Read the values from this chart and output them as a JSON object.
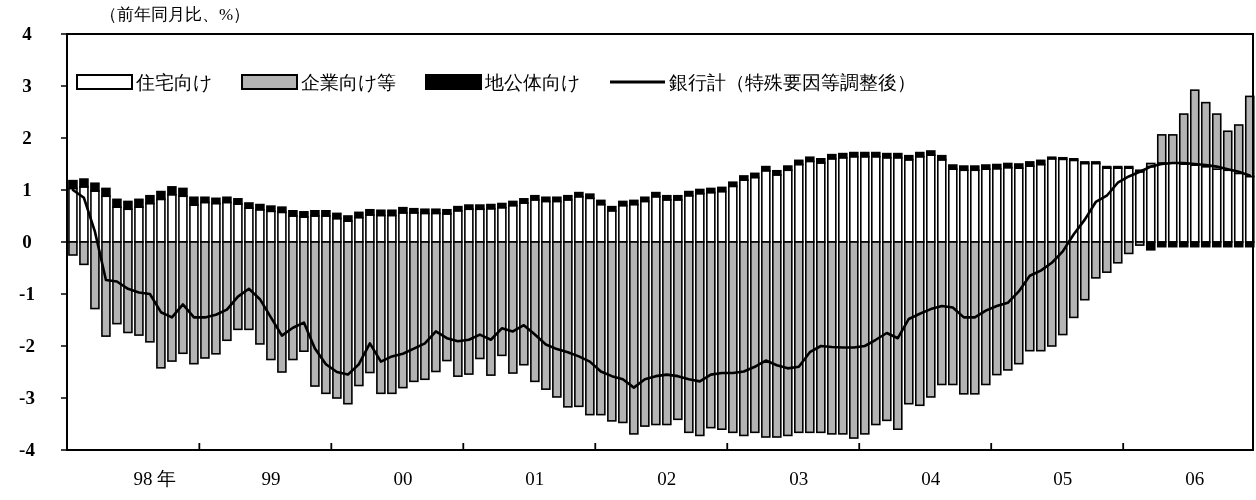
{
  "chart_data": {
    "type": "bar",
    "stacked": true,
    "title": "（前年同月比、%）",
    "x": [
      "1998-01",
      "1998-02",
      "1998-03",
      "1998-04",
      "1998-05",
      "1998-06",
      "1998-07",
      "1998-08",
      "1998-09",
      "1998-10",
      "1998-11",
      "1998-12",
      "1999-01",
      "1999-02",
      "1999-03",
      "1999-04",
      "1999-05",
      "1999-06",
      "1999-07",
      "1999-08",
      "1999-09",
      "1999-10",
      "1999-11",
      "1999-12",
      "2000-01",
      "2000-02",
      "2000-03",
      "2000-04",
      "2000-05",
      "2000-06",
      "2000-07",
      "2000-08",
      "2000-09",
      "2000-10",
      "2000-11",
      "2000-12",
      "2001-01",
      "2001-02",
      "2001-03",
      "2001-04",
      "2001-05",
      "2001-06",
      "2001-07",
      "2001-08",
      "2001-09",
      "2001-10",
      "2001-11",
      "2001-12",
      "2002-01",
      "2002-02",
      "2002-03",
      "2002-04",
      "2002-05",
      "2002-06",
      "2002-07",
      "2002-08",
      "2002-09",
      "2002-10",
      "2002-11",
      "2002-12",
      "2003-01",
      "2003-02",
      "2003-03",
      "2003-04",
      "2003-05",
      "2003-06",
      "2003-07",
      "2003-08",
      "2003-09",
      "2003-10",
      "2003-11",
      "2003-12",
      "2004-01",
      "2004-02",
      "2004-03",
      "2004-04",
      "2004-05",
      "2004-06",
      "2004-07",
      "2004-08",
      "2004-09",
      "2004-10",
      "2004-11",
      "2004-12",
      "2005-01",
      "2005-02",
      "2005-03",
      "2005-04",
      "2005-05",
      "2005-06",
      "2005-07",
      "2005-08",
      "2005-09",
      "2005-10",
      "2005-11",
      "2005-12",
      "2006-01",
      "2006-02",
      "2006-03",
      "2006-04",
      "2006-05",
      "2006-06",
      "2006-07",
      "2006-08",
      "2006-09",
      "2006-10",
      "2006-11",
      "2006-12"
    ],
    "series": [
      {
        "name": "住宅向け",
        "color": "#ffffff",
        "values": [
          1.03,
          1.06,
          0.98,
          0.88,
          0.67,
          0.63,
          0.67,
          0.74,
          0.82,
          0.91,
          0.88,
          0.71,
          0.76,
          0.74,
          0.76,
          0.73,
          0.65,
          0.62,
          0.59,
          0.57,
          0.5,
          0.48,
          0.5,
          0.5,
          0.45,
          0.4,
          0.47,
          0.52,
          0.51,
          0.51,
          0.56,
          0.56,
          0.55,
          0.55,
          0.54,
          0.6,
          0.63,
          0.63,
          0.64,
          0.66,
          0.7,
          0.75,
          0.81,
          0.78,
          0.78,
          0.81,
          0.87,
          0.84,
          0.72,
          0.6,
          0.7,
          0.72,
          0.78,
          0.87,
          0.81,
          0.81,
          0.89,
          0.93,
          0.95,
          0.97,
          1.07,
          1.19,
          1.24,
          1.37,
          1.29,
          1.38,
          1.49,
          1.55,
          1.52,
          1.6,
          1.62,
          1.64,
          1.64,
          1.64,
          1.62,
          1.62,
          1.58,
          1.64,
          1.67,
          1.58,
          1.4,
          1.38,
          1.38,
          1.4,
          1.41,
          1.43,
          1.42,
          1.46,
          1.49,
          1.6,
          1.59,
          1.57,
          1.51,
          1.51,
          1.42,
          1.42,
          1.42,
          1.35,
          1.45,
          1.52,
          1.52,
          1.5,
          1.48,
          1.45,
          1.4,
          1.38,
          1.32,
          1.26
        ]
      },
      {
        "name": "企業向け等",
        "color": "#b4b4b4",
        "values": [
          -0.25,
          -0.43,
          -1.28,
          -1.81,
          -1.57,
          -1.74,
          -1.79,
          -1.92,
          -2.42,
          -2.29,
          -2.14,
          -2.34,
          -2.23,
          -2.15,
          -1.89,
          -1.68,
          -1.68,
          -1.96,
          -2.26,
          -2.5,
          -2.26,
          -2.1,
          -2.77,
          -2.91,
          -3.0,
          -3.11,
          -2.76,
          -2.51,
          -2.91,
          -2.91,
          -2.8,
          -2.68,
          -2.64,
          -2.49,
          -2.28,
          -2.58,
          -2.54,
          -2.24,
          -2.56,
          -2.18,
          -2.52,
          -2.36,
          -2.68,
          -2.83,
          -2.98,
          -3.17,
          -3.16,
          -3.32,
          -3.32,
          -3.44,
          -3.47,
          -3.69,
          -3.54,
          -3.51,
          -3.51,
          -3.41,
          -3.66,
          -3.72,
          -3.57,
          -3.6,
          -3.66,
          -3.72,
          -3.66,
          -3.75,
          -3.75,
          -3.72,
          -3.66,
          -3.66,
          -3.66,
          -3.69,
          -3.69,
          -3.77,
          -3.69,
          -3.51,
          -3.43,
          -3.6,
          -3.11,
          -3.14,
          -2.98,
          -2.74,
          -2.74,
          -2.92,
          -2.92,
          -2.74,
          -2.55,
          -2.46,
          -2.34,
          -2.09,
          -2.09,
          -2.0,
          -1.78,
          -1.45,
          -1.11,
          -0.69,
          -0.58,
          -0.4,
          -0.22,
          -0.06,
          0.06,
          0.54,
          0.54,
          0.96,
          1.44,
          1.23,
          1.06,
          0.75,
          0.93,
          1.54
        ]
      },
      {
        "name": "地公体向け",
        "color": "#000000",
        "values": [
          0.15,
          0.15,
          0.15,
          0.15,
          0.15,
          0.15,
          0.15,
          0.15,
          0.15,
          0.15,
          0.15,
          0.15,
          0.1,
          0.1,
          0.1,
          0.1,
          0.1,
          0.1,
          0.1,
          0.1,
          0.1,
          0.1,
          0.1,
          0.1,
          0.1,
          0.1,
          0.1,
          0.1,
          0.1,
          0.1,
          0.1,
          0.08,
          0.08,
          0.08,
          0.08,
          0.08,
          0.08,
          0.08,
          0.08,
          0.08,
          0.08,
          0.08,
          0.08,
          0.08,
          0.08,
          0.08,
          0.08,
          0.08,
          0.08,
          0.08,
          0.08,
          0.08,
          0.08,
          0.08,
          0.08,
          0.08,
          0.08,
          0.08,
          0.08,
          0.08,
          0.08,
          0.08,
          0.08,
          0.08,
          0.08,
          0.08,
          0.08,
          0.08,
          0.08,
          0.08,
          0.08,
          0.08,
          0.08,
          0.08,
          0.08,
          0.08,
          0.08,
          0.08,
          0.08,
          0.08,
          0.08,
          0.08,
          0.08,
          0.08,
          0.08,
          0.08,
          0.08,
          0.08,
          0.08,
          0.03,
          0.03,
          0.03,
          0.03,
          0.03,
          0.03,
          0.03,
          0.03,
          0.03,
          -0.15,
          -0.09,
          -0.09,
          -0.09,
          -0.09,
          -0.09,
          -0.09,
          -0.09,
          -0.09,
          -0.09
        ]
      },
      {
        "name": "銀行計（特殊要因等調整後）",
        "type": "line",
        "color": "#000000",
        "values": [
          1.0,
          0.85,
          0.2,
          -0.73,
          -0.76,
          -0.9,
          -0.97,
          -1.0,
          -1.35,
          -1.45,
          -1.2,
          -1.45,
          -1.45,
          -1.4,
          -1.3,
          -1.05,
          -0.9,
          -1.1,
          -1.45,
          -1.8,
          -1.65,
          -1.55,
          -2.05,
          -2.35,
          -2.5,
          -2.55,
          -2.35,
          -1.95,
          -2.3,
          -2.2,
          -2.15,
          -2.05,
          -1.95,
          -1.72,
          -1.85,
          -1.91,
          -1.88,
          -1.78,
          -1.88,
          -1.66,
          -1.72,
          -1.6,
          -1.78,
          -1.97,
          -2.06,
          -2.12,
          -2.2,
          -2.3,
          -2.49,
          -2.58,
          -2.64,
          -2.8,
          -2.64,
          -2.58,
          -2.55,
          -2.58,
          -2.64,
          -2.68,
          -2.55,
          -2.52,
          -2.52,
          -2.49,
          -2.4,
          -2.28,
          -2.37,
          -2.43,
          -2.4,
          -2.12,
          -2.0,
          -2.02,
          -2.03,
          -2.03,
          -2.0,
          -1.88,
          -1.75,
          -1.85,
          -1.48,
          -1.38,
          -1.29,
          -1.23,
          -1.26,
          -1.45,
          -1.45,
          -1.32,
          -1.23,
          -1.17,
          -0.95,
          -0.65,
          -0.55,
          -0.4,
          -0.18,
          0.15,
          0.43,
          0.77,
          0.89,
          1.14,
          1.26,
          1.35,
          1.45,
          1.5,
          1.52,
          1.52,
          1.5,
          1.48,
          1.45,
          1.4,
          1.35,
          1.28
        ]
      }
    ],
    "ylim": [
      -4,
      4
    ],
    "yticks": [
      -4,
      -3,
      -2,
      -1,
      0,
      1,
      2,
      3,
      4
    ],
    "xlim": [
      "1997-12-15",
      "2006-12-10"
    ],
    "xticks": [
      {
        "value": "1998-08-15",
        "label": "98 年"
      },
      {
        "value": "1998-12-16",
        "label": null
      },
      {
        "value": "1999-07",
        "label": "99"
      },
      {
        "value": "1999-12-16",
        "label": null
      },
      {
        "value": "2000-07",
        "label": "00"
      },
      {
        "value": "2000-12-16",
        "label": null
      },
      {
        "value": "2001-07",
        "label": "01"
      },
      {
        "value": "2001-12-16",
        "label": null
      },
      {
        "value": "2002-07",
        "label": "02"
      },
      {
        "value": "2002-12-16",
        "label": null
      },
      {
        "value": "2003-07",
        "label": "03"
      },
      {
        "value": "2003-12-16",
        "label": null
      },
      {
        "value": "2004-07",
        "label": "04"
      },
      {
        "value": "2004-12-16",
        "label": null
      },
      {
        "value": "2005-07",
        "label": "05"
      },
      {
        "value": "2005-12-16",
        "label": null
      },
      {
        "value": "2006-07",
        "label": "06"
      }
    ],
    "legend": "top left"
  }
}
